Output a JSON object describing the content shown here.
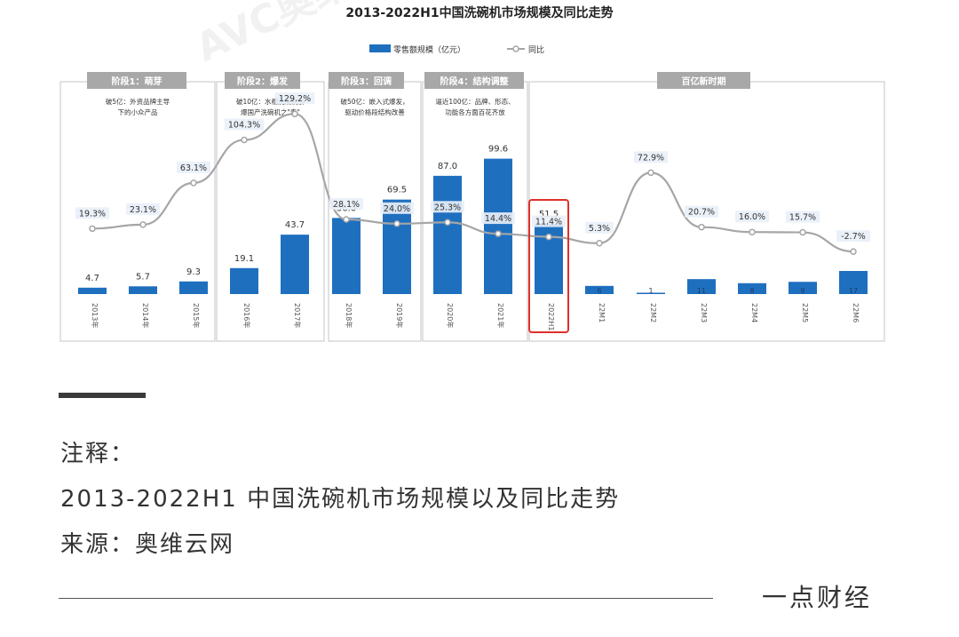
{
  "chart_data": {
    "type": "bar+line",
    "title": "2013-2022H1中国洗碗机市场规模及同比走势",
    "legend": [
      {
        "label": "零售额规模（亿元）",
        "kind": "bar"
      },
      {
        "label": "同比",
        "kind": "line"
      }
    ],
    "legend_position": "top-center",
    "watermark": "AVC奥维云网 ALL VIEW CLOUD",
    "categories": [
      "2013年",
      "2014年",
      "2015年",
      "2016年",
      "2017年",
      "2018年",
      "2019年",
      "2020年",
      "2021年",
      "2022H1",
      "22M1",
      "22M2",
      "22M3",
      "22M4",
      "22M5",
      "22M6"
    ],
    "series": [
      {
        "name": "零售额规模（亿元）",
        "type": "bar",
        "values": [
          4.7,
          5.7,
          9.3,
          19.1,
          43.7,
          56.0,
          69.5,
          87.0,
          99.6,
          51.5,
          6,
          1,
          11,
          8,
          9,
          17
        ],
        "value_labels": [
          "4.7",
          "5.7",
          "9.3",
          "19.1",
          "43.7",
          "56.0",
          "69.5",
          "87.0",
          "99.6",
          "51.5",
          "6",
          "1",
          "11",
          "8",
          "9",
          "17"
        ],
        "value_labels_shown": [
          true,
          true,
          true,
          true,
          true,
          true,
          true,
          true,
          true,
          true,
          false,
          false,
          false,
          false,
          false,
          false
        ]
      },
      {
        "name": "同比",
        "type": "line",
        "values": [
          19.3,
          23.1,
          63.1,
          104.3,
          129.2,
          28.1,
          24.0,
          25.3,
          14.4,
          11.4,
          5.3,
          72.9,
          20.7,
          16.0,
          15.7,
          -2.7
        ],
        "value_labels": [
          "19.3%",
          "23.1%",
          "63.1%",
          "104.3%",
          "129.2%",
          "28.1%",
          "24.0%",
          "25.3%",
          "14.4%",
          "11.4%",
          "5.3%",
          "72.9%",
          "20.7%",
          "16.0%",
          "15.7%",
          "-2.7%"
        ]
      }
    ],
    "stages": [
      {
        "label": "阶段1：萌芽",
        "desc": [
          "破5亿：外资品牌主导",
          "下的小众产品"
        ],
        "from": 0,
        "to": 2
      },
      {
        "label": "阶段2：爆发",
        "desc": [
          "破10亿：水槽洗碗机引",
          "爆国产洗碗机之\"春\""
        ],
        "from": 3,
        "to": 4
      },
      {
        "label": "阶段3：回调",
        "desc": [
          "破50亿：嵌入式爆发，",
          "驱动价格段结构改善"
        ],
        "from": 5,
        "to": 6
      },
      {
        "label": "阶段4：结构调整",
        "desc": [
          "逼近100亿：品牌、形态、",
          "功能各方面百花齐放"
        ],
        "from": 7,
        "to": 8
      },
      {
        "label": "百亿新时期",
        "desc": [],
        "from": 9,
        "to": 15
      }
    ],
    "highlighted_category": "2022H1",
    "colors": {
      "bar": "#1f6fbf",
      "line": "#a6a6a6",
      "stage_header": "#a8a8a8",
      "highlight": "#e0302a",
      "text": "#333333"
    }
  },
  "notes": {
    "label": "注释：",
    "title": "2013-2022H1 中国洗碗机市场规模以及同比走势",
    "source": "来源：奥维云网"
  },
  "brand": "一点财经"
}
